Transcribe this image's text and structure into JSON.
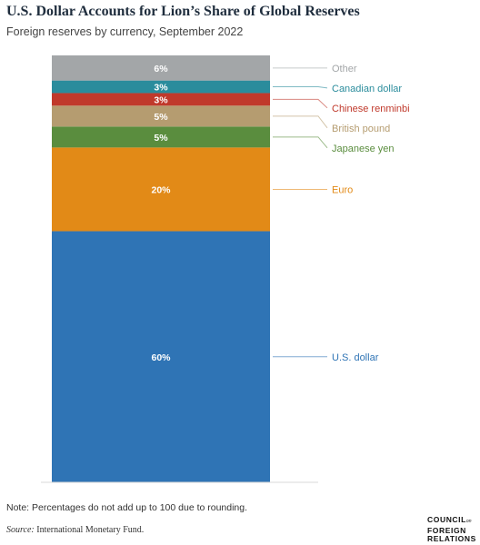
{
  "header": {
    "title": "U.S. Dollar Accounts for Lion’s Share of Global Reserves",
    "subtitle": "Foreign reserves by currency, September 2022"
  },
  "chart_data": {
    "type": "bar",
    "stacked": true,
    "categories": [
      "U.S. dollar",
      "Euro",
      "Japanese yen",
      "British pound",
      "Chinese renminbi",
      "Canadian dollar",
      "Other"
    ],
    "values": [
      60,
      20,
      5,
      5,
      3,
      3,
      6
    ],
    "data_labels": [
      "60%",
      "20%",
      "5%",
      "5%",
      "3%",
      "3%",
      "6%"
    ],
    "colors": [
      "#2f74b5",
      "#e28a17",
      "#5a8d3e",
      "#b59c70",
      "#c0392b",
      "#2a8c9c",
      "#a3a6a8"
    ],
    "label_colors": [
      "#2f74b5",
      "#e28a17",
      "#5a8d3e",
      "#b59c70",
      "#c0392b",
      "#2a8c9c",
      "#a3a6a8"
    ],
    "legend_placement": "right, inline labels",
    "grid": false
  },
  "footer": {
    "note": "Note: Percentages do not add up to 100 due to rounding.",
    "source_label": "Source:",
    "source_text": " International Monetary Fund.",
    "logo_line1": "COUNCIL",
    "logo_on": "on",
    "logo_line2": "FOREIGN",
    "logo_line3": "RELATIONS"
  }
}
